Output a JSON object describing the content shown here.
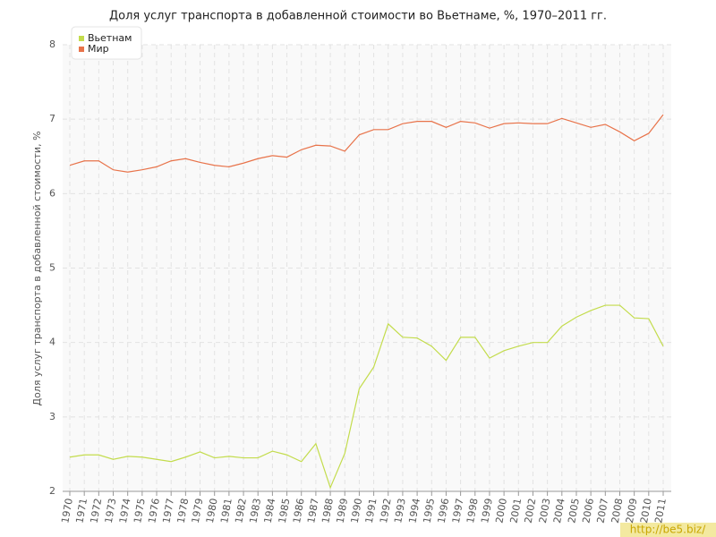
{
  "chart_data": {
    "type": "line",
    "title": "Доля услуг транспорта в добавленной стоимости во Вьетнаме, %, 1970–2011 гг.",
    "y_label": "Доля услуг транспорта в добавленной стоимости, %",
    "watermark": "http://be5.biz/",
    "x": [
      1970,
      1971,
      1972,
      1973,
      1974,
      1975,
      1976,
      1977,
      1978,
      1979,
      1980,
      1981,
      1982,
      1983,
      1984,
      1985,
      1986,
      1987,
      1988,
      1989,
      1990,
      1991,
      1992,
      1993,
      1994,
      1995,
      1996,
      1997,
      1998,
      1999,
      2000,
      2001,
      2002,
      2003,
      2004,
      2005,
      2006,
      2007,
      2008,
      2009,
      2010,
      2011
    ],
    "xlim": [
      1970,
      2011
    ],
    "xticks": [
      1970,
      1971,
      1972,
      1973,
      1974,
      1975,
      1976,
      1977,
      1978,
      1979,
      1980,
      1981,
      1982,
      1983,
      1984,
      1985,
      1986,
      1987,
      1988,
      1989,
      1990,
      1991,
      1992,
      1993,
      1994,
      1995,
      1996,
      1997,
      1998,
      1999,
      2000,
      2001,
      2002,
      2003,
      2004,
      2005,
      2006,
      2007,
      2008,
      2009,
      2010,
      2011
    ],
    "ylim": [
      2,
      8
    ],
    "yticks": [
      2,
      3,
      4,
      5,
      6,
      7,
      8
    ],
    "grid": true,
    "legend": "top-left",
    "series": [
      {
        "name": "Вьетнам",
        "color": "#c3dc4c",
        "values": [
          2.46,
          2.49,
          2.49,
          2.43,
          2.47,
          2.46,
          2.43,
          2.4,
          2.46,
          2.53,
          2.45,
          2.47,
          2.45,
          2.45,
          2.54,
          2.49,
          2.4,
          2.64,
          2.05,
          2.51,
          3.38,
          3.67,
          4.25,
          4.07,
          4.06,
          3.95,
          3.76,
          4.07,
          4.07,
          3.79,
          3.89,
          3.95,
          4.0,
          4.0,
          4.22,
          4.34,
          4.43,
          4.5,
          4.5,
          4.33,
          4.32,
          3.95
        ]
      },
      {
        "name": "Мир",
        "color": "#e8734a",
        "values": [
          6.38,
          6.44,
          6.44,
          6.32,
          6.29,
          6.32,
          6.36,
          6.44,
          6.47,
          6.42,
          6.38,
          6.36,
          6.41,
          6.47,
          6.51,
          6.49,
          6.59,
          6.65,
          6.64,
          6.57,
          6.79,
          6.86,
          6.86,
          6.94,
          6.97,
          6.97,
          6.89,
          6.97,
          6.95,
          6.88,
          6.94,
          6.95,
          6.94,
          6.94,
          7.01,
          6.95,
          6.89,
          6.93,
          6.83,
          6.71,
          6.81,
          7.06
        ]
      }
    ]
  }
}
